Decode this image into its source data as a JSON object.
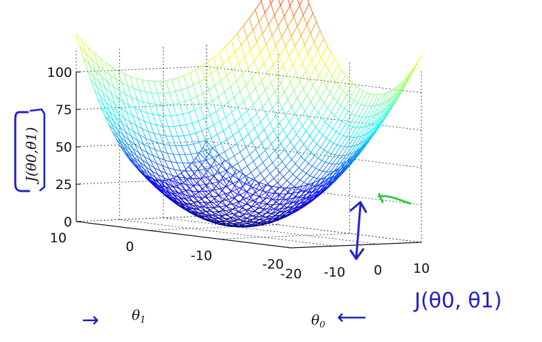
{
  "chart_data": {
    "type": "surface",
    "function": "J(theta0, theta1) = 0.25 * (theta0^2 + theta1^2)",
    "x_label": "θ0",
    "y_label": "θ1",
    "z_label": "J(θ0,θ1)",
    "x_range": [
      -20,
      10
    ],
    "y_range": [
      -20,
      10
    ],
    "z_range": [
      0,
      100
    ],
    "x_ticks": [
      "-20",
      "-10",
      "0",
      "10"
    ],
    "y_ticks": [
      "-20",
      "-10",
      "0",
      "10"
    ],
    "z_ticks": [
      "0",
      "25",
      "50",
      "75",
      "100"
    ],
    "grid": true,
    "colormap": "jet",
    "mesh_resolution": 36
  },
  "annotations": {
    "handwritten_label": "J(θ0, θ1)",
    "tick_mark": "✓",
    "arrow_left": "→",
    "arrow_right": "⟵"
  },
  "colors": {
    "ink": "#1f20c8",
    "green_ink": "#22c93a"
  }
}
